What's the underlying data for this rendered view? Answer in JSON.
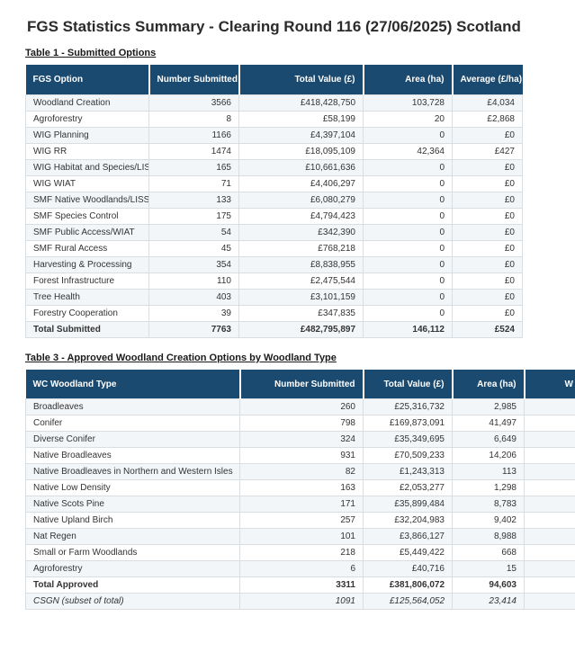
{
  "page": {
    "title": "FGS Statistics Summary - Clearing Round 116 (27/06/2025) Scotland"
  },
  "colors": {
    "header_bg": "#1B4A70",
    "header_text": "#FFFFFF",
    "row_alt_bg": "#F3F6F9",
    "border": "#D9DEE3",
    "body_text": "#333333"
  },
  "table1": {
    "caption": "Table 1 - Submitted Options",
    "columns": [
      "FGS Option",
      "Number Submitted",
      "Total Value (£)",
      "Area (ha)",
      "Average (£/ha)"
    ],
    "rows": [
      [
        "Woodland Creation",
        "3566",
        "£418,428,750",
        "103,728",
        "£4,034"
      ],
      [
        "Agroforestry",
        "8",
        "£58,199",
        "20",
        "£2,868"
      ],
      [
        "WIG Planning",
        "1166",
        "£4,397,104",
        "0",
        "£0"
      ],
      [
        "WIG RR",
        "1474",
        "£18,095,109",
        "42,364",
        "£427"
      ],
      [
        "WIG Habitat and Species/LISS",
        "165",
        "£10,661,636",
        "0",
        "£0"
      ],
      [
        "WIG WIAT",
        "71",
        "£4,406,297",
        "0",
        "£0"
      ],
      [
        "SMF Native Woodlands/LISS",
        "133",
        "£6,080,279",
        "0",
        "£0"
      ],
      [
        "SMF Species Control",
        "175",
        "£4,794,423",
        "0",
        "£0"
      ],
      [
        "SMF Public Access/WIAT",
        "54",
        "£342,390",
        "0",
        "£0"
      ],
      [
        "SMF Rural Access",
        "45",
        "£768,218",
        "0",
        "£0"
      ],
      [
        "Harvesting & Processing",
        "354",
        "£8,838,955",
        "0",
        "£0"
      ],
      [
        "Forest Infrastructure",
        "110",
        "£2,475,544",
        "0",
        "£0"
      ],
      [
        "Tree Health",
        "403",
        "£3,101,159",
        "0",
        "£0"
      ],
      [
        "Forestry Cooperation",
        "39",
        "£347,835",
        "0",
        "£0"
      ]
    ],
    "total_row": [
      "Total Submitted",
      "7763",
      "£482,795,897",
      "146,112",
      "£524"
    ]
  },
  "table3": {
    "caption": "Table 3 - Approved Woodland Creation Options by Woodland Type",
    "columns": [
      "WC Woodland Type",
      "Number Submitted",
      "Total Value (£)",
      "Area (ha)",
      "W"
    ],
    "rows": [
      [
        "Broadleaves",
        "260",
        "£25,316,732",
        "2,985",
        ""
      ],
      [
        "Conifer",
        "798",
        "£169,873,091",
        "41,497",
        ""
      ],
      [
        "Diverse Conifer",
        "324",
        "£35,349,695",
        "6,649",
        ""
      ],
      [
        "Native Broadleaves",
        "931",
        "£70,509,233",
        "14,206",
        ""
      ],
      [
        "Native Broadleaves in Northern and Western Isles",
        "82",
        "£1,243,313",
        "113",
        ""
      ],
      [
        "Native Low Density",
        "163",
        "£2,053,277",
        "1,298",
        ""
      ],
      [
        "Native Scots Pine",
        "171",
        "£35,899,484",
        "8,783",
        ""
      ],
      [
        "Native Upland Birch",
        "257",
        "£32,204,983",
        "9,402",
        ""
      ],
      [
        "Nat Regen",
        "101",
        "£3,866,127",
        "8,988",
        ""
      ],
      [
        "Small or Farm Woodlands",
        "218",
        "£5,449,422",
        "668",
        ""
      ],
      [
        "Agroforestry",
        "6",
        "£40,716",
        "15",
        ""
      ]
    ],
    "total_row": [
      "Total Approved",
      "3311",
      "£381,806,072",
      "94,603",
      ""
    ],
    "subset_row": [
      "CSGN (subset of total)",
      "1091",
      "£125,564,052",
      "23,414",
      ""
    ]
  }
}
